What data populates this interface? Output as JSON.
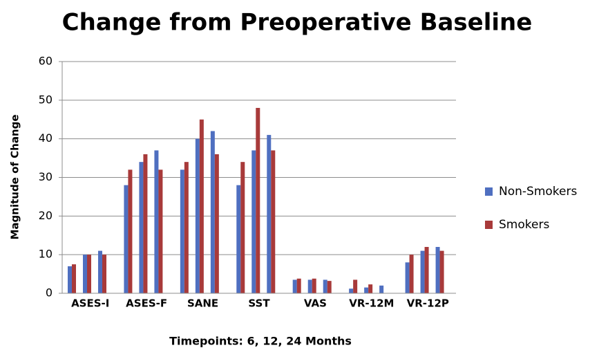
{
  "chart_data": {
    "type": "bar",
    "title": "Change from Preoperative Baseline",
    "y_label": "Magnitude of Change",
    "x_label": "Timepoints: 6, 12, 24 Months",
    "categories": [
      "ASES-I",
      "ASES-F",
      "SANE",
      "SST",
      "VAS",
      "VR-12M",
      "VR-12P"
    ],
    "series": [
      {
        "name": "Non-Smokers",
        "color": "#4f6fc0",
        "values": [
          [
            7,
            10,
            11
          ],
          [
            28,
            34,
            37
          ],
          [
            32,
            40,
            42
          ],
          [
            28,
            37,
            41
          ],
          [
            3.5,
            3.5,
            3.5
          ],
          [
            1.2,
            1.5,
            2
          ],
          [
            8,
            11,
            12
          ]
        ]
      },
      {
        "name": "Smokers",
        "color": "#a83a3a",
        "values": [
          [
            7.5,
            10,
            10
          ],
          [
            32,
            36,
            32
          ],
          [
            34,
            45,
            36
          ],
          [
            34,
            48,
            37
          ],
          [
            3.8,
            3.8,
            3.2
          ],
          [
            3.5,
            2.3,
            0
          ],
          [
            10,
            12,
            11
          ]
        ]
      }
    ],
    "ylim": [
      0,
      60
    ],
    "yticks": [
      0,
      10,
      20,
      30,
      40,
      50,
      60
    ],
    "grid": true,
    "legend": "right"
  }
}
